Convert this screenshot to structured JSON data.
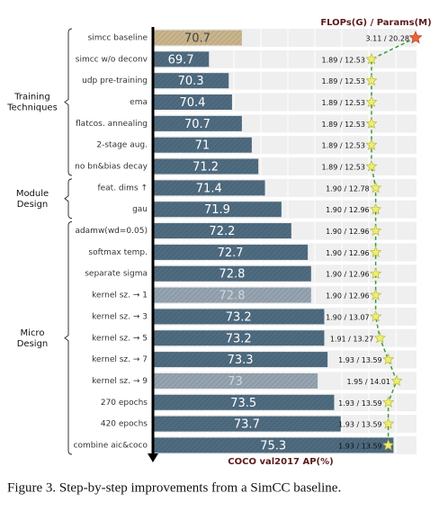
{
  "chart_data": {
    "type": "bar",
    "orientation": "horizontal",
    "xlabel": "COCO val2017 AP(%)",
    "caption": "Figure 3. Step-by-step improvements from a SimCC baseline.",
    "categories": [
      "simcc baseline",
      "simcc w/o deconv",
      "udp pre-training",
      "ema",
      "flatcos. annealing",
      "2-stage aug.",
      "no bn&bias decay",
      "feat. dims ↑",
      "gau",
      "adamw(wd=0.05)",
      "softmax temp.",
      "separate sigma",
      "kernel sz. → 1",
      "kernel sz. → 3",
      "kernel sz. → 5",
      "kernel sz. → 7",
      "kernel sz. → 9",
      "270 epochs",
      "420 epochs",
      "combine aic&coco"
    ],
    "values": [
      70.7,
      69.7,
      70.3,
      70.4,
      70.7,
      71,
      71.2,
      71.4,
      71.9,
      72.2,
      72.7,
      72.8,
      72.8,
      73.2,
      73.2,
      73.3,
      73,
      73.5,
      73.7,
      75.3
    ],
    "colors": [
      "#c9b58c",
      "#4f6b80",
      "#4f6b80",
      "#4f6b80",
      "#4f6b80",
      "#4f6b80",
      "#4f6b80",
      "#4f6b80",
      "#4f6b80",
      "#4f6b80",
      "#4f6b80",
      "#4f6b80",
      "#95a4b0",
      "#4f6b80",
      "#4f6b80",
      "#4f6b80",
      "#95a4b0",
      "#4f6b80",
      "#4f6b80",
      "#4f6b80"
    ],
    "xlim": [
      68,
      76
    ],
    "groups": [
      {
        "label": "Training Techniques",
        "first": 0,
        "last": 6
      },
      {
        "label": "Module Design",
        "first": 7,
        "last": 8
      },
      {
        "label": "Micro Design",
        "first": 9,
        "last": 19
      }
    ],
    "cost": {
      "title": "FLOPs(G) / Params(M)",
      "color": "#3a9a3a",
      "x2lim": [
        1.8,
        2.0
      ],
      "flops": [
        3.11,
        1.89,
        1.89,
        1.89,
        1.89,
        1.89,
        1.89,
        1.9,
        1.9,
        1.9,
        1.9,
        1.9,
        1.9,
        1.9,
        1.91,
        1.93,
        1.95,
        1.93,
        1.93,
        1.93
      ],
      "params": [
        20.28,
        12.53,
        12.53,
        12.53,
        12.53,
        12.53,
        12.53,
        12.78,
        12.96,
        12.96,
        12.96,
        12.96,
        12.96,
        13.07,
        13.27,
        13.59,
        14.01,
        13.59,
        13.59,
        13.59
      ],
      "value_labels": [
        "3.11 / 20.28",
        "1.89 / 12.53",
        "1.89 / 12.53",
        "1.89 / 12.53",
        "1.89 / 12.53",
        "1.89 / 12.53",
        "1.89 / 12.53",
        "1.90 / 12.78",
        "1.90 / 12.96",
        "1.90 / 12.96",
        "1.90 / 12.96",
        "1.90 / 12.96",
        "1.90 / 12.96",
        "1.90 / 13.07",
        "1.91 / 13.27",
        "1.93 / 13.59",
        "1.95 / 14.01",
        "1.93 / 13.59",
        "1.93 / 13.59",
        "1.93 / 13.59"
      ]
    }
  }
}
